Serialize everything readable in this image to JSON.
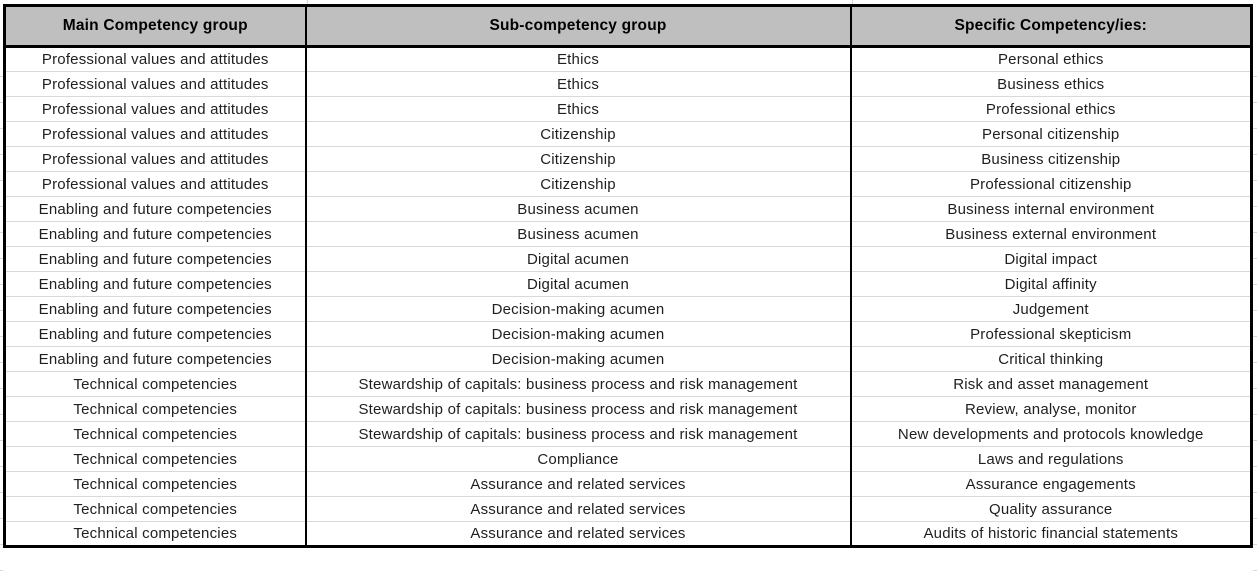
{
  "colors": {
    "header_bg": "#bfbfbf",
    "table_border": "#000000",
    "gridline": "#d9d9d9",
    "text": "#1f1f1f"
  },
  "table": {
    "columns": [
      {
        "label": "Main Competency group"
      },
      {
        "label": "Sub-competency group"
      },
      {
        "label": "Specific Competency/ies:"
      }
    ],
    "rows": [
      [
        "Professional values and attitudes",
        "Ethics",
        "Personal ethics"
      ],
      [
        "Professional values and attitudes",
        "Ethics",
        "Business ethics"
      ],
      [
        "Professional values and attitudes",
        "Ethics",
        "Professional ethics"
      ],
      [
        "Professional values and attitudes",
        "Citizenship",
        "Personal citizenship"
      ],
      [
        "Professional values and attitudes",
        "Citizenship",
        "Business citizenship"
      ],
      [
        "Professional values and attitudes",
        "Citizenship",
        "Professional citizenship"
      ],
      [
        "Enabling and future competencies",
        "Business acumen",
        "Business internal environment"
      ],
      [
        "Enabling and future competencies",
        "Business acumen",
        "Business external environment"
      ],
      [
        "Enabling and future competencies",
        "Digital acumen",
        "Digital impact"
      ],
      [
        "Enabling and future competencies",
        "Digital acumen",
        "Digital affinity"
      ],
      [
        "Enabling and future competencies",
        "Decision-making acumen",
        "Judgement"
      ],
      [
        "Enabling and future competencies",
        "Decision-making acumen",
        "Professional skepticism"
      ],
      [
        "Enabling and future competencies",
        "Decision-making acumen",
        "Critical thinking"
      ],
      [
        "Technical competencies",
        "Stewardship of capitals: business process and risk management",
        "Risk and asset management"
      ],
      [
        "Technical competencies",
        "Stewardship of capitals: business process and risk management",
        "Review, analyse, monitor"
      ],
      [
        "Technical competencies",
        "Stewardship of capitals: business process and risk management",
        "New developments and protocols knowledge"
      ],
      [
        "Technical competencies",
        "Compliance",
        "Laws and regulations"
      ],
      [
        "Technical competencies",
        "Assurance and related services",
        "Assurance engagements"
      ],
      [
        "Technical competencies",
        "Assurance and related services",
        "Quality assurance"
      ],
      [
        "Technical competencies",
        "Assurance and related services",
        "Audits of historic financial statements"
      ]
    ]
  }
}
